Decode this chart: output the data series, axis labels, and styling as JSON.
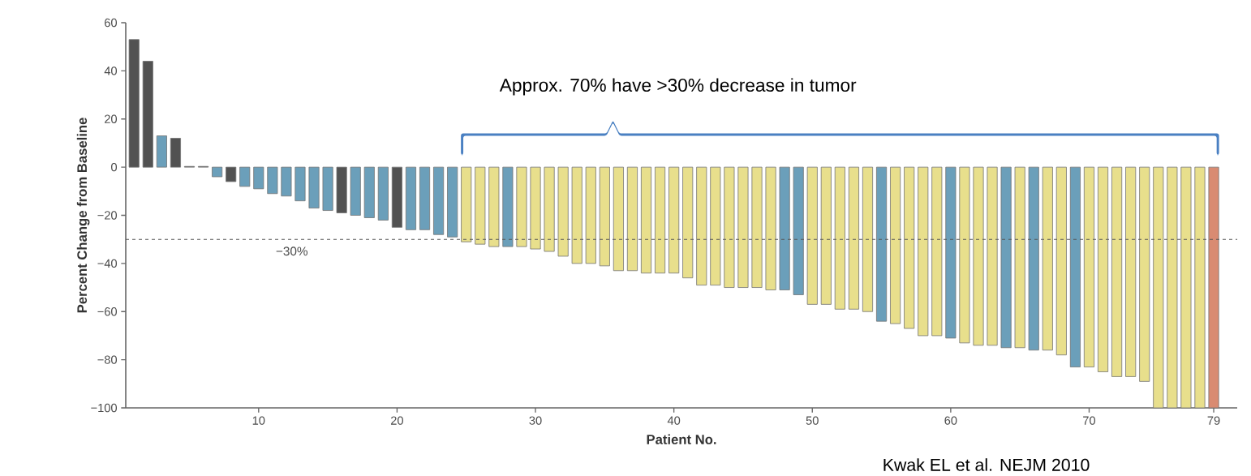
{
  "chart_data": {
    "type": "bar",
    "xlabel": "Patient No.",
    "ylabel": "Percent Change from Baseline",
    "x": [
      1,
      2,
      3,
      4,
      5,
      6,
      7,
      8,
      9,
      10,
      11,
      12,
      13,
      14,
      15,
      16,
      17,
      18,
      19,
      20,
      21,
      22,
      23,
      24,
      25,
      26,
      27,
      28,
      29,
      30,
      31,
      32,
      33,
      34,
      35,
      36,
      37,
      38,
      39,
      40,
      41,
      42,
      43,
      44,
      45,
      46,
      47,
      48,
      49,
      50,
      51,
      52,
      53,
      54,
      55,
      56,
      57,
      58,
      59,
      60,
      61,
      62,
      63,
      64,
      65,
      66,
      67,
      68,
      69,
      70,
      71,
      72,
      73,
      74,
      75,
      76,
      77,
      78,
      79
    ],
    "values": [
      53,
      44,
      13,
      12,
      0.3,
      0.3,
      -4,
      -6,
      -8,
      -9,
      -11,
      -12,
      -14,
      -17,
      -18,
      -19,
      -20,
      -21,
      -22,
      -25,
      -26,
      -26,
      -28,
      -29,
      -31,
      -32,
      -33,
      -33,
      -33,
      -34,
      -35,
      -37,
      -40,
      -40,
      -41,
      -43,
      -43,
      -44,
      -44,
      -44,
      -46,
      -49,
      -49,
      -50,
      -50,
      -50,
      -51,
      -51,
      -53,
      -57,
      -57,
      -59,
      -59,
      -60,
      -64,
      -65,
      -67,
      -70,
      -70,
      -71,
      -73,
      -74,
      -74,
      -75,
      -75,
      -76,
      -76,
      -78,
      -83,
      -83,
      -85,
      -87,
      -87,
      -89,
      -100,
      -100,
      -100,
      -100,
      -100
    ],
    "colors": [
      "#525252",
      "#525252",
      "#6b9fba",
      "#525252",
      "#525252",
      "#525252",
      "#6b9fba",
      "#525252",
      "#6b9fba",
      "#6b9fba",
      "#6b9fba",
      "#6b9fba",
      "#6b9fba",
      "#6b9fba",
      "#6b9fba",
      "#525252",
      "#6b9fba",
      "#6b9fba",
      "#6b9fba",
      "#525252",
      "#6b9fba",
      "#6b9fba",
      "#6b9fba",
      "#6b9fba",
      "#e8df8c",
      "#e8df8c",
      "#e8df8c",
      "#6b9fba",
      "#e8df8c",
      "#e8df8c",
      "#e8df8c",
      "#e8df8c",
      "#e8df8c",
      "#e8df8c",
      "#e8df8c",
      "#e8df8c",
      "#e8df8c",
      "#e8df8c",
      "#e8df8c",
      "#e8df8c",
      "#e8df8c",
      "#e8df8c",
      "#e8df8c",
      "#e8df8c",
      "#e8df8c",
      "#e8df8c",
      "#e8df8c",
      "#6b9fba",
      "#6b9fba",
      "#e8df8c",
      "#e8df8c",
      "#e8df8c",
      "#e8df8c",
      "#e8df8c",
      "#6b9fba",
      "#e8df8c",
      "#e8df8c",
      "#e8df8c",
      "#e8df8c",
      "#6b9fba",
      "#e8df8c",
      "#e8df8c",
      "#e8df8c",
      "#6b9fba",
      "#e8df8c",
      "#6b9fba",
      "#e8df8c",
      "#e8df8c",
      "#6b9fba",
      "#e8df8c",
      "#e8df8c",
      "#e8df8c",
      "#e8df8c",
      "#e8df8c",
      "#e8df8c",
      "#e8df8c",
      "#e8df8c",
      "#e8df8c",
      "#d98b72"
    ],
    "xlim": [
      0.4,
      80.7
    ],
    "ylim": [
      -100,
      60
    ],
    "xticks": [
      10,
      20,
      30,
      40,
      50,
      60,
      70,
      79
    ],
    "yticks": [
      {
        "value": -100,
        "label": "−100"
      },
      {
        "value": -80,
        "label": "−80"
      },
      {
        "value": -60,
        "label": "−60"
      },
      {
        "value": -40,
        "label": "−40"
      },
      {
        "value": -20,
        "label": "−20"
      },
      0,
      20,
      40,
      60
    ],
    "ref_lines": [
      {
        "axis": "y",
        "value": -30,
        "label": "−30%",
        "line_style": "dashed",
        "color": "#555555"
      }
    ],
    "annotations": [
      "Approx. 70% have >30% decrease in tumor",
      "Kwak EL et al. NEJM 2010"
    ],
    "grid": false
  }
}
